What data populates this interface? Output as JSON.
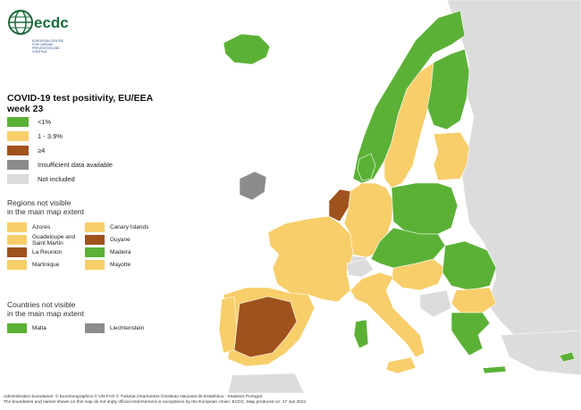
{
  "logo": {
    "text": "ecdc",
    "subtext": "EUROPEAN CENTRE FOR DISEASE PREVENTION AND CONTROL"
  },
  "title": {
    "line1": "COVID-19 test positivity, EU/EEA",
    "line2": "week 23"
  },
  "colors": {
    "low": "#5bb135",
    "mid": "#f7ce6a",
    "high": "#a0521d",
    "insufficient": "#8c8c8c",
    "not_included": "#dcdcdc",
    "sea": "#ffffff"
  },
  "legend": [
    {
      "label": "<1%",
      "color": "#5bb135"
    },
    {
      "label": "1 - 3.9%",
      "color": "#f7ce6a"
    },
    {
      "label": "≥4",
      "color": "#a0521d"
    },
    {
      "label": "Insufficient data available",
      "color": "#8c8c8c"
    },
    {
      "label": "Not included",
      "color": "#dcdcdc"
    }
  ],
  "regions_section": {
    "heading_line1": "Regions not visible",
    "heading_line2": "in the main map extent",
    "items": [
      {
        "label": "Azores",
        "color": "#f7ce6a"
      },
      {
        "label": "Canary Islands",
        "color": "#f7ce6a"
      },
      {
        "label": "Guadeloupe and Saint Martin",
        "color": "#f7ce6a"
      },
      {
        "label": "Guyane",
        "color": "#a0521d"
      },
      {
        "label": "La Reunion",
        "color": "#a0521d"
      },
      {
        "label": "Madeira",
        "color": "#5bb135"
      },
      {
        "label": "Martinique",
        "color": "#f7ce6a"
      },
      {
        "label": "Mayotte",
        "color": "#f7ce6a"
      }
    ]
  },
  "countries_section": {
    "heading_line1": "Countries not visible",
    "heading_line2": "in the main map extent",
    "items": [
      {
        "label": "Malta",
        "color": "#5bb135"
      },
      {
        "label": "Liechtenstein",
        "color": "#8c8c8c"
      }
    ]
  },
  "footer": {
    "line1": "Administrative boundaries: © EuroGeographics © UN-FAO © Turkstat,©Kartverket,©Instituto Nacional de Estatística - Statistics Portugal.",
    "line2": "The boundaries and names shown on this map do not imply official endorsement or acceptance by the European Union. ECDC. Map produced on: 17 Jun 2021"
  }
}
